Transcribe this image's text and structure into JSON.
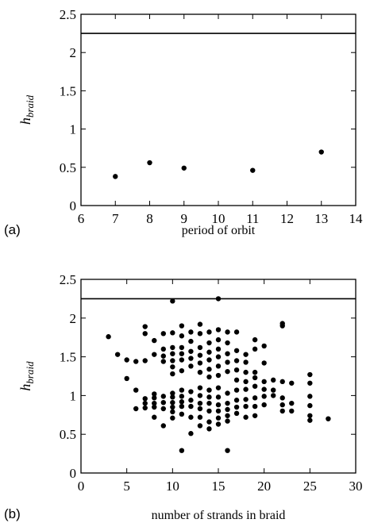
{
  "chart_data": [
    {
      "panel": "(a)",
      "type": "scatter",
      "xlabel": "period of orbit",
      "ylabel": "h",
      "ylabel_sub": "braid",
      "xlim": [
        6,
        14
      ],
      "ylim": [
        0,
        2.5
      ],
      "xticks": [
        6,
        7,
        8,
        9,
        10,
        11,
        12,
        13,
        14
      ],
      "yticks": [
        0,
        0.5,
        1,
        1.5,
        2,
        2.5
      ],
      "ytick_labels": [
        "0",
        "0.5",
        "1",
        "1.5",
        "2",
        "2.5"
      ],
      "hline": 2.25,
      "points": [
        [
          7,
          0.38
        ],
        [
          8,
          0.56
        ],
        [
          9,
          0.49
        ],
        [
          11,
          0.46
        ],
        [
          13,
          0.7
        ]
      ]
    },
    {
      "panel": "(b)",
      "type": "scatter",
      "xlabel": "number of strands in braid",
      "ylabel": "h",
      "ylabel_sub": "braid",
      "xlim": [
        0,
        30
      ],
      "ylim": [
        0,
        2.5
      ],
      "xticks": [
        0,
        5,
        10,
        15,
        20,
        25,
        30
      ],
      "yticks": [
        0,
        0.5,
        1,
        1.5,
        2,
        2.5
      ],
      "ytick_labels": [
        "0",
        "0.5",
        "1",
        "1.5",
        "2",
        "2.5"
      ],
      "hline": 2.25,
      "points": [
        [
          3,
          1.76
        ],
        [
          4,
          1.53
        ],
        [
          5,
          1.46
        ],
        [
          5,
          1.22
        ],
        [
          6,
          1.07
        ],
        [
          6,
          0.83
        ],
        [
          6,
          1.44
        ],
        [
          7,
          1.8
        ],
        [
          7,
          1.45
        ],
        [
          7,
          0.96
        ],
        [
          7,
          0.9
        ],
        [
          7,
          0.84
        ],
        [
          7,
          1.89
        ],
        [
          8,
          1.71
        ],
        [
          8,
          1.53
        ],
        [
          8,
          1.02
        ],
        [
          8,
          0.97
        ],
        [
          8,
          0.9
        ],
        [
          8,
          0.85
        ],
        [
          8,
          0.72
        ],
        [
          9,
          1.6
        ],
        [
          9,
          1.51
        ],
        [
          9,
          0.99
        ],
        [
          9,
          0.91
        ],
        [
          9,
          0.83
        ],
        [
          9,
          0.61
        ],
        [
          9,
          1.8
        ],
        [
          9,
          1.44
        ],
        [
          10,
          2.22
        ],
        [
          10,
          1.81
        ],
        [
          10,
          1.62
        ],
        [
          10,
          1.54
        ],
        [
          10,
          1.45
        ],
        [
          10,
          1.37
        ],
        [
          10,
          1.28
        ],
        [
          10,
          1.03
        ],
        [
          10,
          0.98
        ],
        [
          10,
          0.91
        ],
        [
          10,
          0.85
        ],
        [
          10,
          0.79
        ],
        [
          10,
          0.71
        ],
        [
          11,
          1.9
        ],
        [
          11,
          1.77
        ],
        [
          11,
          1.62
        ],
        [
          11,
          1.54
        ],
        [
          11,
          1.46
        ],
        [
          11,
          1.32
        ],
        [
          11,
          1.07
        ],
        [
          11,
          0.99
        ],
        [
          11,
          0.92
        ],
        [
          11,
          0.86
        ],
        [
          11,
          0.76
        ],
        [
          11,
          0.29
        ],
        [
          12,
          1.82
        ],
        [
          12,
          1.7
        ],
        [
          12,
          1.57
        ],
        [
          12,
          1.48
        ],
        [
          12,
          1.38
        ],
        [
          12,
          1.05
        ],
        [
          12,
          0.94
        ],
        [
          12,
          0.86
        ],
        [
          12,
          0.72
        ],
        [
          12,
          0.51
        ],
        [
          13,
          1.92
        ],
        [
          13,
          1.8
        ],
        [
          13,
          1.62
        ],
        [
          13,
          1.52
        ],
        [
          13,
          1.42
        ],
        [
          13,
          1.3
        ],
        [
          13,
          1.1
        ],
        [
          13,
          1.0
        ],
        [
          13,
          0.9
        ],
        [
          13,
          0.83
        ],
        [
          13,
          0.72
        ],
        [
          13,
          0.61
        ],
        [
          14,
          1.82
        ],
        [
          14,
          1.68
        ],
        [
          14,
          1.56
        ],
        [
          14,
          1.46
        ],
        [
          14,
          1.34
        ],
        [
          14,
          1.24
        ],
        [
          14,
          1.07
        ],
        [
          14,
          0.98
        ],
        [
          14,
          0.9
        ],
        [
          14,
          0.8
        ],
        [
          14,
          0.66
        ],
        [
          14,
          0.57
        ],
        [
          15,
          2.25
        ],
        [
          15,
          1.85
        ],
        [
          15,
          1.72
        ],
        [
          15,
          1.6
        ],
        [
          15,
          1.5
        ],
        [
          15,
          1.38
        ],
        [
          15,
          1.26
        ],
        [
          15,
          1.1
        ],
        [
          15,
          0.98
        ],
        [
          15,
          0.88
        ],
        [
          15,
          0.8
        ],
        [
          15,
          0.71
        ],
        [
          15,
          0.63
        ],
        [
          16,
          1.82
        ],
        [
          16,
          1.68
        ],
        [
          16,
          1.54
        ],
        [
          16,
          1.43
        ],
        [
          16,
          1.31
        ],
        [
          16,
          1.03
        ],
        [
          16,
          0.9
        ],
        [
          16,
          0.82
        ],
        [
          16,
          0.74
        ],
        [
          16,
          0.67
        ],
        [
          16,
          0.29
        ],
        [
          17,
          1.82
        ],
        [
          17,
          1.58
        ],
        [
          17,
          1.45
        ],
        [
          17,
          1.33
        ],
        [
          17,
          1.2
        ],
        [
          17,
          1.07
        ],
        [
          17,
          0.94
        ],
        [
          17,
          0.85
        ],
        [
          17,
          0.77
        ],
        [
          18,
          1.53
        ],
        [
          18,
          1.43
        ],
        [
          18,
          1.3
        ],
        [
          18,
          1.18
        ],
        [
          18,
          1.08
        ],
        [
          18,
          0.95
        ],
        [
          18,
          0.86
        ],
        [
          18,
          0.72
        ],
        [
          19,
          1.72
        ],
        [
          19,
          1.6
        ],
        [
          19,
          1.3
        ],
        [
          19,
          1.23
        ],
        [
          19,
          1.12
        ],
        [
          19,
          0.97
        ],
        [
          19,
          0.86
        ],
        [
          19,
          0.74
        ],
        [
          20,
          1.64
        ],
        [
          20,
          1.42
        ],
        [
          20,
          1.18
        ],
        [
          20,
          1.08
        ],
        [
          20,
          0.99
        ],
        [
          20,
          0.88
        ],
        [
          21,
          1.2
        ],
        [
          21,
          1.07
        ],
        [
          21,
          1.0
        ],
        [
          22,
          1.93
        ],
        [
          22,
          1.9
        ],
        [
          22,
          1.18
        ],
        [
          22,
          0.97
        ],
        [
          22,
          0.88
        ],
        [
          22,
          0.8
        ],
        [
          23,
          1.16
        ],
        [
          23,
          0.9
        ],
        [
          23,
          0.8
        ],
        [
          25,
          1.27
        ],
        [
          25,
          1.16
        ],
        [
          25,
          0.99
        ],
        [
          25,
          0.87
        ],
        [
          25,
          0.74
        ],
        [
          25,
          0.68
        ],
        [
          27,
          0.7
        ]
      ]
    }
  ]
}
